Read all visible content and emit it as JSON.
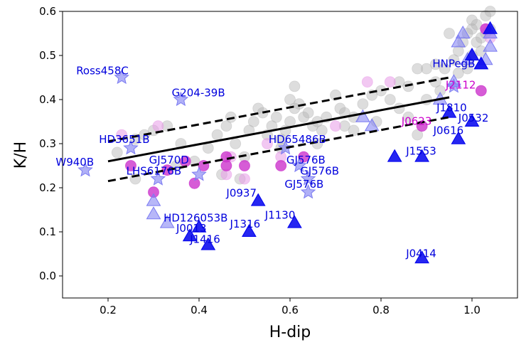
{
  "chart_data": {
    "type": "scatter",
    "title": "",
    "xlabel": "H-dip",
    "ylabel": "K/H",
    "xlim": [
      0.1,
      1.1
    ],
    "ylim": [
      -0.05,
      0.6
    ],
    "xticks": [
      0.2,
      0.4,
      0.6,
      0.8,
      1.0
    ],
    "yticks": [
      0.0,
      0.1,
      0.2,
      0.3,
      0.4,
      0.5,
      0.6
    ],
    "xtick_labels": [
      "0.2",
      "0.4",
      "0.6",
      "0.8",
      "1.0"
    ],
    "ytick_labels": [
      "0.0",
      "0.1",
      "0.2",
      "0.3",
      "0.4",
      "0.5",
      "0.6"
    ],
    "colors": {
      "grey": "#b4b4b4",
      "magenta": "#cc33cc",
      "magenta_light": "#e79ae7",
      "blue": "#0000ee",
      "blue_light": "#7b7bf2",
      "label_blue": "#0000dd",
      "label_magenta": "#cc00cc"
    },
    "lines": [
      {
        "name": "fit",
        "style": "solid",
        "x": [
          0.2,
          0.95
        ],
        "y": [
          0.26,
          0.405
        ]
      },
      {
        "name": "upper",
        "style": "dashed",
        "x": [
          0.2,
          0.95
        ],
        "y": [
          0.305,
          0.45
        ]
      },
      {
        "name": "lower",
        "style": "dashed",
        "x": [
          0.2,
          0.95
        ],
        "y": [
          0.215,
          0.36
        ]
      }
    ],
    "series": [
      {
        "name": "field",
        "marker": "circle",
        "color": "grey",
        "points": [
          [
            0.22,
            0.28
          ],
          [
            0.26,
            0.31
          ],
          [
            0.28,
            0.32
          ],
          [
            0.3,
            0.33
          ],
          [
            0.33,
            0.34
          ],
          [
            0.36,
            0.3
          ],
          [
            0.39,
            0.26
          ],
          [
            0.42,
            0.29
          ],
          [
            0.44,
            0.32
          ],
          [
            0.46,
            0.34
          ],
          [
            0.47,
            0.36
          ],
          [
            0.48,
            0.3
          ],
          [
            0.5,
            0.27
          ],
          [
            0.51,
            0.33
          ],
          [
            0.52,
            0.35
          ],
          [
            0.53,
            0.38
          ],
          [
            0.54,
            0.37
          ],
          [
            0.55,
            0.32
          ],
          [
            0.56,
            0.34
          ],
          [
            0.57,
            0.36
          ],
          [
            0.58,
            0.31
          ],
          [
            0.59,
            0.33
          ],
          [
            0.6,
            0.35
          ],
          [
            0.61,
            0.38
          ],
          [
            0.62,
            0.39
          ],
          [
            0.63,
            0.36
          ],
          [
            0.64,
            0.37
          ],
          [
            0.65,
            0.34
          ],
          [
            0.66,
            0.35
          ],
          [
            0.67,
            0.33
          ],
          [
            0.68,
            0.36
          ],
          [
            0.7,
            0.41
          ],
          [
            0.71,
            0.38
          ],
          [
            0.72,
            0.37
          ],
          [
            0.74,
            0.36
          ],
          [
            0.76,
            0.39
          ],
          [
            0.78,
            0.41
          ],
          [
            0.8,
            0.42
          ],
          [
            0.82,
            0.4
          ],
          [
            0.84,
            0.44
          ],
          [
            0.86,
            0.43
          ],
          [
            0.88,
            0.47
          ],
          [
            0.9,
            0.47
          ],
          [
            0.92,
            0.48
          ],
          [
            0.94,
            0.47
          ],
          [
            0.95,
            0.55
          ],
          [
            0.96,
            0.49
          ],
          [
            0.97,
            0.51
          ],
          [
            0.98,
            0.53
          ],
          [
            0.99,
            0.55
          ],
          [
            1.0,
            0.56
          ],
          [
            1.0,
            0.58
          ],
          [
            1.01,
            0.57
          ],
          [
            1.02,
            0.54
          ],
          [
            1.03,
            0.59
          ],
          [
            1.04,
            0.6
          ],
          [
            1.04,
            0.56
          ],
          [
            1.02,
            0.51
          ],
          [
            1.0,
            0.5
          ],
          [
            0.99,
            0.47
          ],
          [
            0.26,
            0.22
          ],
          [
            0.49,
            0.22
          ],
          [
            0.45,
            0.23
          ],
          [
            0.35,
            0.25
          ],
          [
            0.61,
            0.43
          ],
          [
            0.74,
            0.33
          ],
          [
            0.88,
            0.32
          ],
          [
            0.9,
            0.4
          ],
          [
            0.93,
            0.42
          ],
          [
            0.84,
            0.38
          ],
          [
            0.72,
            0.34
          ],
          [
            0.66,
            0.3
          ],
          [
            0.58,
            0.29
          ],
          [
            0.6,
            0.4
          ],
          [
            0.79,
            0.35
          ],
          [
            0.86,
            0.36
          ],
          [
            0.92,
            0.44
          ],
          [
            0.97,
            0.46
          ],
          [
            1.01,
            0.53
          ],
          [
            1.03,
            0.55
          ]
        ]
      },
      {
        "name": "young_light",
        "marker": "circle",
        "color": "magenta_light",
        "points": [
          [
            0.23,
            0.32
          ],
          [
            0.31,
            0.34
          ],
          [
            0.46,
            0.23
          ],
          [
            0.47,
            0.27
          ],
          [
            0.5,
            0.22
          ],
          [
            0.55,
            0.3
          ],
          [
            0.7,
            0.34
          ],
          [
            0.77,
            0.44
          ],
          [
            0.82,
            0.44
          ],
          [
            1.03,
            0.56
          ],
          [
            1.04,
            0.54
          ],
          [
            0.58,
            0.27
          ]
        ]
      },
      {
        "name": "young",
        "marker": "circle",
        "color": "magenta",
        "points": [
          [
            0.25,
            0.25
          ],
          [
            0.3,
            0.19
          ],
          [
            0.33,
            0.24
          ],
          [
            0.37,
            0.26
          ],
          [
            0.39,
            0.21
          ],
          [
            0.41,
            0.25
          ],
          [
            0.46,
            0.25
          ],
          [
            0.46,
            0.27
          ],
          [
            0.5,
            0.25
          ],
          [
            0.58,
            0.25
          ],
          [
            0.63,
            0.27
          ],
          [
            0.89,
            0.34
          ],
          [
            1.02,
            0.42
          ],
          [
            1.03,
            0.56
          ]
        ]
      },
      {
        "name": "stars",
        "marker": "star",
        "color": "blue_light",
        "points": [
          [
            0.23,
            0.45
          ],
          [
            0.36,
            0.4
          ],
          [
            0.25,
            0.29
          ],
          [
            0.15,
            0.24
          ],
          [
            0.31,
            0.22
          ],
          [
            0.4,
            0.23
          ],
          [
            0.59,
            0.29
          ],
          [
            0.62,
            0.25
          ],
          [
            0.64,
            0.22
          ],
          [
            0.64,
            0.19
          ],
          [
            0.96,
            0.43
          ]
        ]
      },
      {
        "name": "triangles_light",
        "marker": "triangle",
        "color": "blue_light",
        "points": [
          [
            0.3,
            0.17
          ],
          [
            0.3,
            0.14
          ],
          [
            0.33,
            0.12
          ],
          [
            0.76,
            0.36
          ],
          [
            0.78,
            0.34
          ],
          [
            0.93,
            0.4
          ],
          [
            0.96,
            0.44
          ],
          [
            0.98,
            0.55
          ],
          [
            1.04,
            0.52
          ],
          [
            1.04,
            0.55
          ],
          [
            0.97,
            0.53
          ],
          [
            1.03,
            0.49
          ],
          [
            1.02,
            0.48
          ],
          [
            0.99,
            0.49
          ]
        ]
      },
      {
        "name": "triangles",
        "marker": "triangle",
        "color": "blue",
        "points": [
          [
            0.53,
            0.17
          ],
          [
            0.51,
            0.1
          ],
          [
            0.38,
            0.09
          ],
          [
            0.4,
            0.11
          ],
          [
            0.42,
            0.07
          ],
          [
            0.61,
            0.12
          ],
          [
            0.89,
            0.27
          ],
          [
            0.95,
            0.37
          ],
          [
            0.97,
            0.31
          ],
          [
            1.0,
            0.35
          ],
          [
            0.89,
            0.04
          ],
          [
            0.83,
            0.27
          ],
          [
            1.0,
            0.5
          ],
          [
            1.02,
            0.48
          ],
          [
            1.04,
            0.56
          ]
        ]
      }
    ],
    "annotations": [
      {
        "text": "Ross458C",
        "x": 0.13,
        "y": 0.457,
        "color": "label_blue"
      },
      {
        "text": "G204-39B",
        "x": 0.34,
        "y": 0.407,
        "color": "label_blue"
      },
      {
        "text": "HNPegB",
        "x": 0.913,
        "y": 0.473,
        "color": "label_blue"
      },
      {
        "text": "J2112",
        "x": 0.942,
        "y": 0.425,
        "color": "label_magenta"
      },
      {
        "text": "J1810",
        "x": 0.922,
        "y": 0.373,
        "color": "label_blue"
      },
      {
        "text": "J0532",
        "x": 0.97,
        "y": 0.35,
        "color": "label_blue"
      },
      {
        "text": "J0623",
        "x": 0.845,
        "y": 0.343,
        "color": "label_magenta"
      },
      {
        "text": "J0616",
        "x": 0.915,
        "y": 0.322,
        "color": "label_blue"
      },
      {
        "text": "HD3651B",
        "x": 0.18,
        "y": 0.302,
        "color": "label_blue"
      },
      {
        "text": "HD65486B",
        "x": 0.553,
        "y": 0.302,
        "color": "label_blue"
      },
      {
        "text": "J1553",
        "x": 0.855,
        "y": 0.275,
        "color": "label_blue"
      },
      {
        "text": "W940B",
        "x": 0.085,
        "y": 0.25,
        "color": "label_blue"
      },
      {
        "text": "GJ570D",
        "x": 0.29,
        "y": 0.255,
        "color": "label_blue"
      },
      {
        "text": "GJ576B",
        "x": 0.592,
        "y": 0.255,
        "color": "label_blue"
      },
      {
        "text": "LHS6176B",
        "x": 0.24,
        "y": 0.23,
        "color": "label_blue"
      },
      {
        "text": "GJ576B",
        "x": 0.622,
        "y": 0.23,
        "color": "label_blue"
      },
      {
        "text": "GJ576B",
        "x": 0.588,
        "y": 0.2,
        "color": "label_blue"
      },
      {
        "text": "J0937",
        "x": 0.46,
        "y": 0.18,
        "color": "label_blue"
      },
      {
        "text": "J1130",
        "x": 0.545,
        "y": 0.13,
        "color": "label_blue"
      },
      {
        "text": "HD126053B",
        "x": 0.322,
        "y": 0.123,
        "color": "label_blue"
      },
      {
        "text": "J1316",
        "x": 0.468,
        "y": 0.11,
        "color": "label_blue"
      },
      {
        "text": "J0013",
        "x": 0.35,
        "y": 0.1,
        "color": "label_blue"
      },
      {
        "text": "J1416",
        "x": 0.38,
        "y": 0.075,
        "color": "label_blue"
      },
      {
        "text": "J0414",
        "x": 0.855,
        "y": 0.043,
        "color": "label_blue"
      }
    ]
  }
}
